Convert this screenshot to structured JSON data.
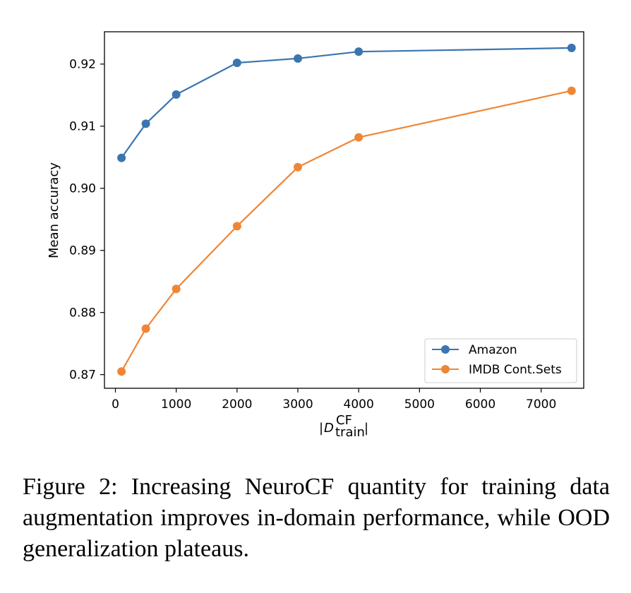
{
  "chart_data": {
    "type": "line",
    "title": "",
    "xlabel": "|D_train^CF|",
    "xlabel_parts": {
      "left_bar": "|",
      "base": "D",
      "sup": "CF",
      "sub": "train",
      "right_bar": "|"
    },
    "ylabel": "Mean accuracy",
    "xlim": [
      -180,
      7700
    ],
    "ylim": [
      0.8678,
      0.9252
    ],
    "x_ticks": [
      0,
      1000,
      2000,
      3000,
      4000,
      5000,
      6000,
      7000
    ],
    "x_tick_labels": [
      "0",
      "1000",
      "2000",
      "3000",
      "4000",
      "5000",
      "6000",
      "7000"
    ],
    "y_ticks": [
      0.87,
      0.88,
      0.89,
      0.9,
      0.91,
      0.92
    ],
    "y_tick_labels": [
      "0.87",
      "0.88",
      "0.89",
      "0.90",
      "0.91",
      "0.92"
    ],
    "grid": false,
    "legend_position": "lower-right",
    "series": [
      {
        "name": "Amazon",
        "color": "#3b75af",
        "x": [
          100,
          500,
          1000,
          2000,
          3000,
          4000,
          7500
        ],
        "y": [
          0.9049,
          0.9104,
          0.9151,
          0.9202,
          0.9209,
          0.922,
          0.9226
        ]
      },
      {
        "name": "IMDB Cont.Sets",
        "color": "#ef8636",
        "x": [
          100,
          500,
          1000,
          2000,
          3000,
          4000,
          7500
        ],
        "y": [
          0.8705,
          0.8774,
          0.8838,
          0.8939,
          0.9034,
          0.9082,
          0.9157
        ]
      }
    ]
  },
  "caption": "Figure 2:  Increasing NeuroCF quantity for training data augmentation improves in-domain performance, while OOD generalization plateaus."
}
